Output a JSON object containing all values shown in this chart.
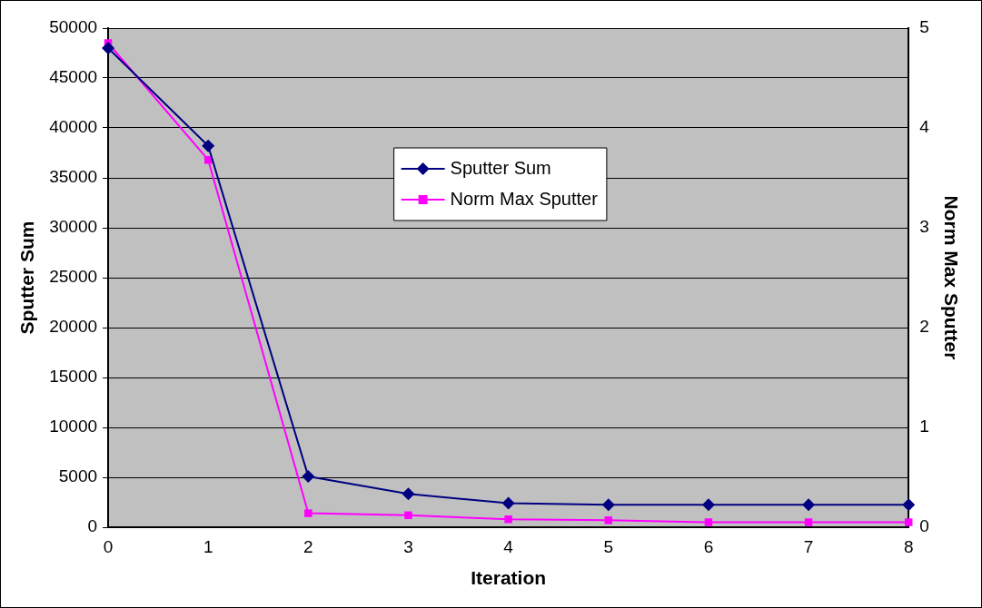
{
  "chart_data": {
    "type": "line",
    "xlabel": "Iteration",
    "ylabel": "Sputter Sum",
    "y2label": "Norm Max Sputter",
    "categories": [
      "0",
      "1",
      "2",
      "3",
      "4",
      "5",
      "6",
      "7",
      "8"
    ],
    "series": [
      {
        "name": "Sputter Sum",
        "color": "#000080",
        "marker": "diamond",
        "values": [
          48000,
          38200,
          5100,
          3350,
          2400,
          2250,
          2250,
          2250,
          2250
        ]
      },
      {
        "name": "Norm Max Sputter",
        "color": "#ff00ff",
        "marker": "square",
        "axis": "y2",
        "values": [
          4.85,
          3.68,
          0.14,
          0.12,
          0.08,
          0.07,
          0.05,
          0.05,
          0.05
        ]
      }
    ],
    "ylim": [
      0,
      50000
    ],
    "yticks": [
      0,
      5000,
      10000,
      15000,
      20000,
      25000,
      30000,
      35000,
      40000,
      45000,
      50000
    ],
    "y2lim": [
      0,
      5
    ],
    "y2ticks": [
      0,
      1,
      2,
      3,
      4,
      5
    ],
    "grid": "y",
    "legend": "top",
    "line_style": "solid"
  }
}
